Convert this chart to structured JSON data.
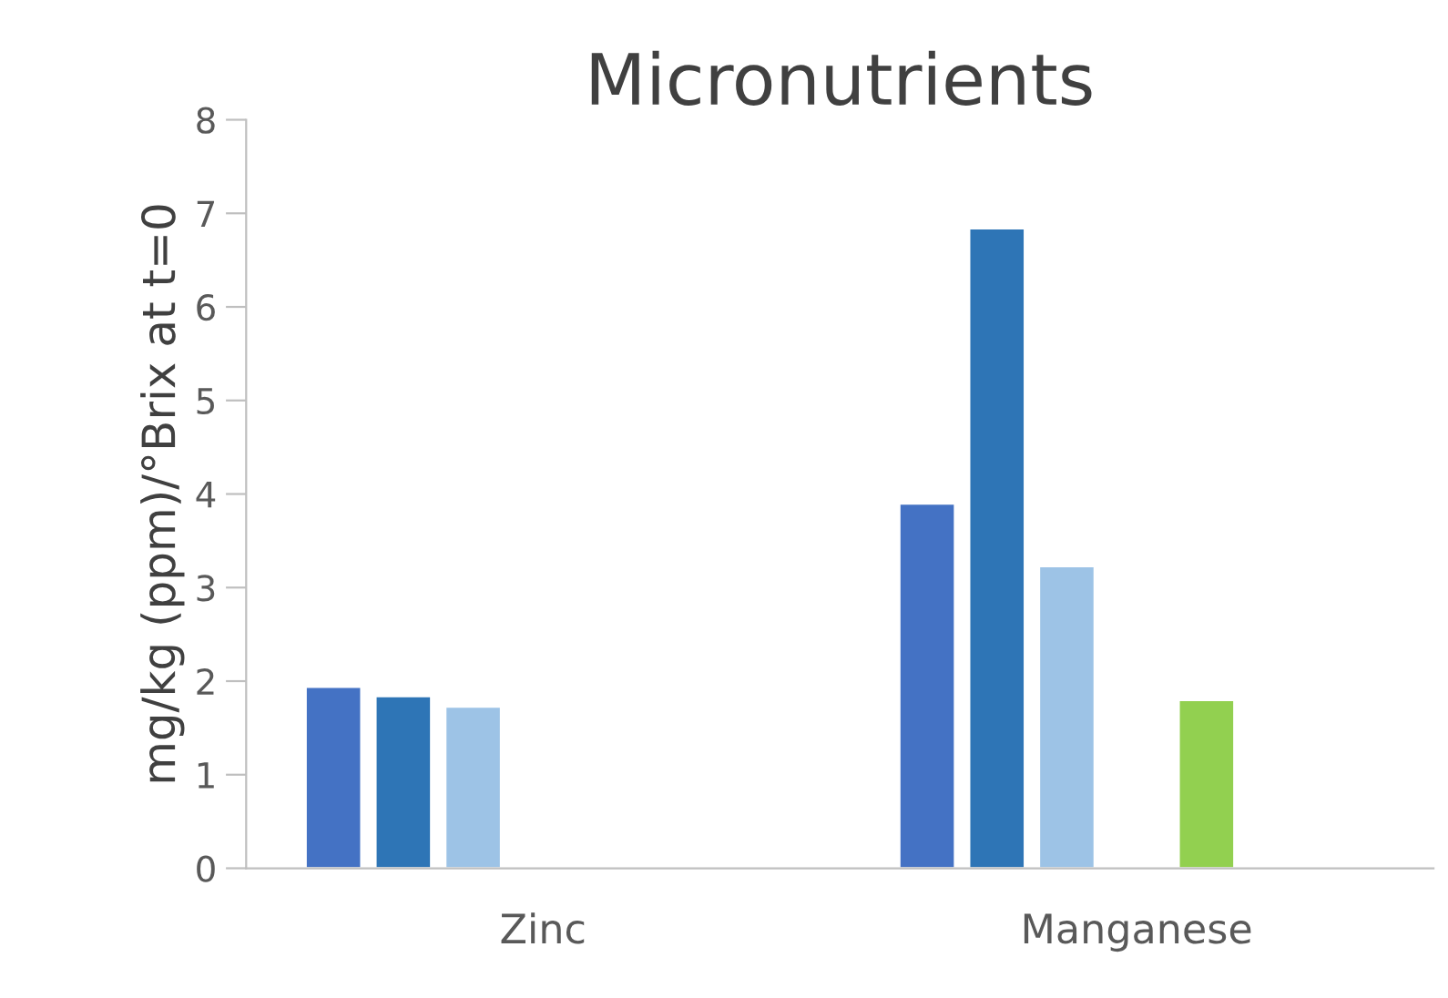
{
  "chart_data": {
    "type": "bar",
    "title": "Micronutrients",
    "ylabel": "mg/kg (ppm)/°Brix at t=0",
    "categories": [
      "Zinc",
      "Manganese"
    ],
    "series": [
      {
        "color": "#4472c4",
        "values": [
          1.94,
          3.9
        ]
      },
      {
        "color": "#2e75b6",
        "values": [
          1.84,
          6.84
        ]
      },
      {
        "color": "#9dc3e6",
        "values": [
          1.73,
          3.23
        ]
      },
      {
        "values": [
          null,
          null
        ]
      },
      {
        "color": "#92d050",
        "values": [
          null,
          1.8
        ]
      },
      {
        "values": [
          null,
          null
        ]
      },
      {
        "values": [
          null,
          null
        ]
      }
    ],
    "ylim": [
      0,
      8
    ],
    "yticks": [
      0,
      1,
      2,
      3,
      4,
      5,
      6,
      7,
      8
    ],
    "grid": false,
    "legend": false
  }
}
